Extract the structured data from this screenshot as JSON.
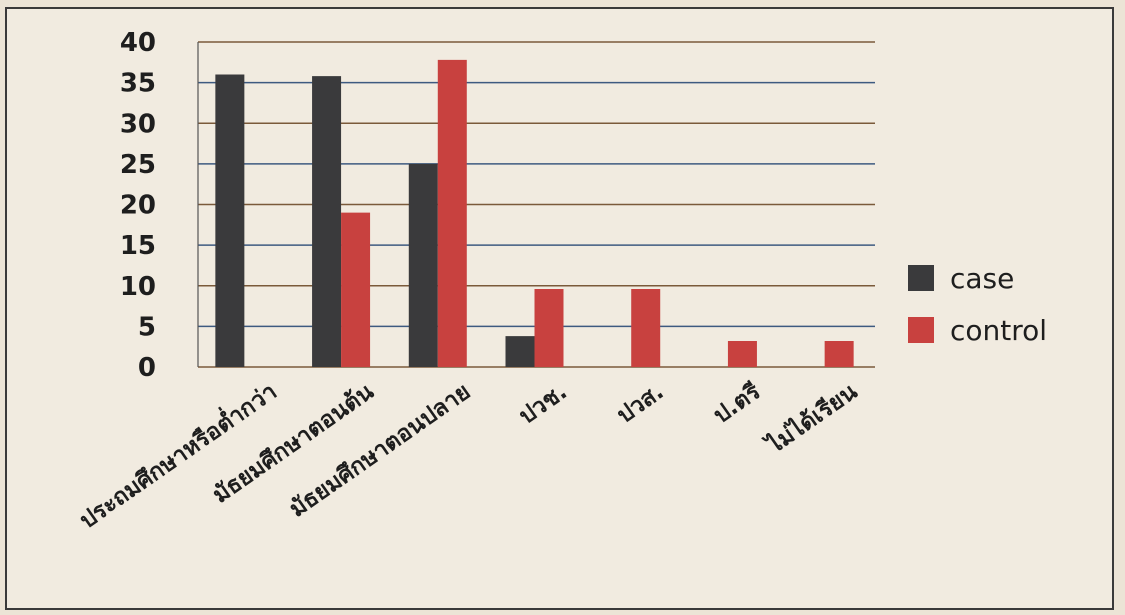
{
  "chart_data": {
    "type": "bar",
    "title": "",
    "xlabel": "",
    "ylabel": "",
    "ylim": [
      0,
      40
    ],
    "yticks": [
      0,
      5,
      10,
      15,
      20,
      25,
      30,
      35,
      40
    ],
    "grid": true,
    "legend_position": "right",
    "categories": [
      "ประถมศึกษาหรือต่ำกว่า",
      "มัธยมศึกษาตอนต้น",
      "มัธยมศึกษาตอนปลาย",
      "ปวช.",
      "ปวส.",
      "ป.ตรี",
      "ไม่ได้เรียน"
    ],
    "series": [
      {
        "name": "case",
        "color": "#3a3a3c",
        "values": [
          36,
          35.8,
          25,
          3.8,
          0,
          0,
          0
        ]
      },
      {
        "name": "control",
        "color": "#c8413f",
        "values": [
          0,
          19,
          37.8,
          9.6,
          9.6,
          3.2,
          3.2
        ]
      }
    ]
  }
}
